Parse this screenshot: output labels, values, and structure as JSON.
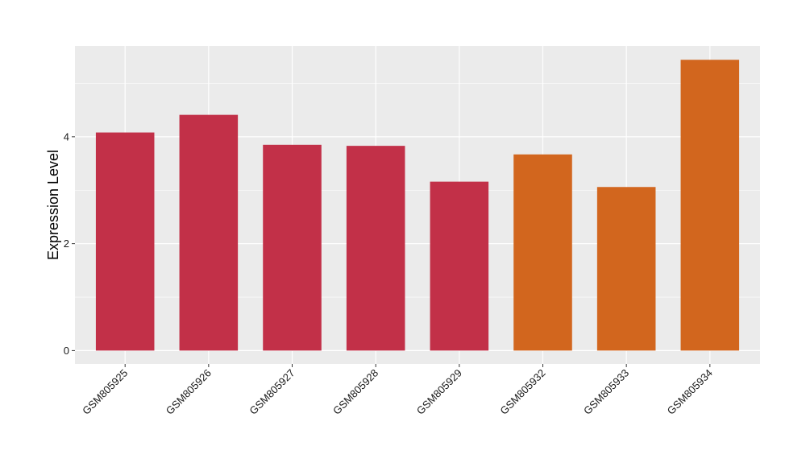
{
  "chart_data": {
    "type": "bar",
    "title": "",
    "xlabel": "",
    "ylabel": "Expression Level",
    "categories": [
      "GSM805925",
      "GSM805926",
      "GSM805927",
      "GSM805928",
      "GSM805929",
      "GSM805932",
      "GSM805933",
      "GSM805934"
    ],
    "values": [
      4.08,
      4.41,
      3.85,
      3.83,
      3.16,
      3.67,
      3.06,
      5.44
    ],
    "bar_colors": [
      "#c23048",
      "#c23048",
      "#c23048",
      "#c23048",
      "#c23048",
      "#d2661e",
      "#d2661e",
      "#d2661e"
    ],
    "ylim": [
      -0.25,
      5.7
    ],
    "y_ticks": [
      0,
      2,
      4
    ],
    "y_tick_labels": [
      "0",
      "2",
      "4"
    ],
    "grid": true,
    "legend": "none",
    "panel_background": "#ebebeb",
    "grid_color": "#ffffff"
  }
}
